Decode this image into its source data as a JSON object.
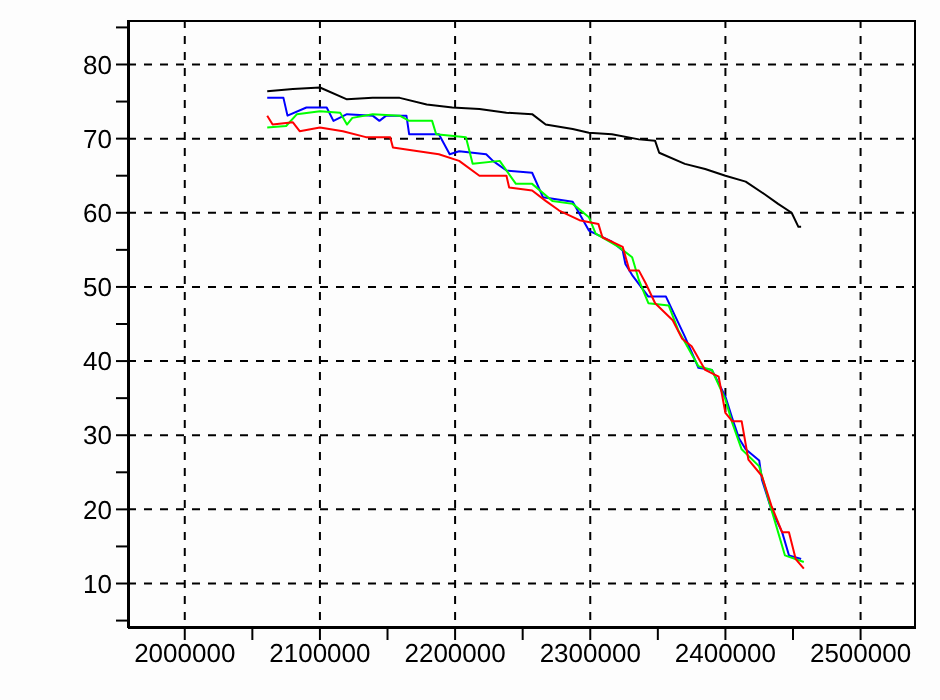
{
  "chart_data": {
    "type": "line",
    "xlim": [
      1958000,
      2541000
    ],
    "ylim": [
      4,
      86
    ],
    "xticks": [
      2000000,
      {
        "value": 2050000,
        "label": null
      },
      2100000,
      {
        "value": 2150000,
        "label": null
      },
      2200000,
      {
        "value": 2250000,
        "label": null
      },
      2300000,
      {
        "value": 2350000,
        "label": null
      },
      2400000,
      {
        "value": 2450000,
        "label": null
      },
      2500000
    ],
    "yticks": [
      {
        "value": 5,
        "label": null
      },
      10,
      {
        "value": 15,
        "label": null
      },
      20,
      {
        "value": 25,
        "label": null
      },
      30,
      {
        "value": 35,
        "label": null
      },
      40,
      {
        "value": 45,
        "label": null
      },
      50,
      {
        "value": 55,
        "label": null
      },
      60,
      {
        "value": 65,
        "label": null
      },
      70,
      {
        "value": 75,
        "label": null
      },
      80,
      {
        "value": 85,
        "label": null
      }
    ],
    "grid": true,
    "marker": "none",
    "line_style": "solid",
    "series": [
      {
        "color": "#000000",
        "x": [
          2061000,
          2080000,
          2100000,
          2120000,
          2139000,
          2159000,
          2179000,
          2198000,
          2218000,
          2238000,
          2257000,
          2267000,
          2287000,
          2299000,
          2316000,
          2336000,
          2348000,
          2351000,
          2370000,
          2385000,
          2400000,
          2415000,
          2429000,
          2439000,
          2449000,
          2454000,
          2456000
        ],
        "values": [
          76.4,
          76.7,
          76.9,
          75.3,
          75.5,
          75.5,
          74.6,
          74.2,
          74.0,
          73.5,
          73.3,
          71.9,
          71.3,
          70.8,
          70.6,
          69.9,
          69.7,
          68.1,
          66.6,
          65.9,
          65.0,
          64.2,
          62.5,
          61.2,
          60.0,
          58.1,
          58.1
        ]
      },
      {
        "color": "#0000ff",
        "x": [
          2061000,
          2073000,
          2076000,
          2090000,
          2105000,
          2110000,
          2120000,
          2139000,
          2144000,
          2149000,
          2164000,
          2166000,
          2188000,
          2196000,
          2203000,
          2223000,
          2228000,
          2238000,
          2257000,
          2265000,
          2287000,
          2299000,
          2316000,
          2324000,
          2326000,
          2331000,
          2343000,
          2356000,
          2363000,
          2370000,
          2380000,
          2390000,
          2400000,
          2405000,
          2410000,
          2415000,
          2425000,
          2427000,
          2434000,
          2442000,
          2447000,
          2456000
        ],
        "values": [
          75.5,
          75.5,
          73.1,
          74.2,
          74.2,
          72.4,
          73.3,
          73.1,
          72.4,
          73.1,
          73.1,
          70.6,
          70.6,
          67.9,
          68.3,
          67.9,
          67.0,
          65.7,
          65.4,
          62.1,
          61.5,
          57.6,
          56.1,
          54.9,
          53.1,
          51.6,
          48.7,
          48.7,
          46.0,
          43.3,
          39.1,
          38.8,
          35.2,
          32.3,
          29.6,
          28.1,
          26.6,
          24.0,
          20.0,
          16.9,
          13.8,
          13.3
        ]
      },
      {
        "color": "#00ff00",
        "x": [
          2061000,
          2075000,
          2083000,
          2100000,
          2115000,
          2120000,
          2124000,
          2139000,
          2159000,
          2166000,
          2183000,
          2186000,
          2208000,
          2213000,
          2233000,
          2245000,
          2257000,
          2272000,
          2287000,
          2299000,
          2304000,
          2321000,
          2331000,
          2336000,
          2343000,
          2358000,
          2365000,
          2380000,
          2390000,
          2400000,
          2405000,
          2412000,
          2425000,
          2434000,
          2444000,
          2458000
        ],
        "values": [
          71.5,
          71.7,
          73.3,
          73.7,
          73.5,
          71.9,
          72.8,
          73.3,
          73.1,
          72.4,
          72.4,
          70.6,
          70.2,
          66.6,
          67.0,
          63.9,
          63.9,
          61.6,
          61.2,
          59.4,
          57.2,
          55.4,
          54.0,
          50.9,
          47.8,
          47.5,
          44.2,
          39.3,
          38.8,
          34.8,
          31.7,
          28.1,
          25.8,
          20.0,
          13.8,
          12.9
        ]
      },
      {
        "color": "#ff0000",
        "x": [
          2061000,
          2065000,
          2080000,
          2085000,
          2100000,
          2117000,
          2134000,
          2152000,
          2154000,
          2169000,
          2188000,
          2203000,
          2218000,
          2238000,
          2240000,
          2257000,
          2267000,
          2277000,
          2292000,
          2306000,
          2309000,
          2324000,
          2329000,
          2336000,
          2341000,
          2348000,
          2361000,
          2368000,
          2375000,
          2385000,
          2395000,
          2400000,
          2405000,
          2412000,
          2417000,
          2427000,
          2434000,
          2442000,
          2447000,
          2452000,
          2458000
        ],
        "values": [
          73.1,
          71.9,
          72.2,
          71.0,
          71.5,
          71.0,
          70.2,
          70.2,
          68.8,
          68.4,
          67.9,
          67.0,
          65.0,
          65.0,
          63.4,
          63.0,
          61.6,
          60.3,
          59.0,
          58.5,
          56.7,
          55.4,
          52.2,
          52.2,
          50.5,
          47.8,
          45.5,
          43.0,
          42.0,
          38.8,
          37.9,
          33.0,
          31.9,
          31.9,
          26.7,
          24.5,
          20.5,
          16.9,
          16.9,
          13.3,
          12.0
        ]
      }
    ]
  }
}
